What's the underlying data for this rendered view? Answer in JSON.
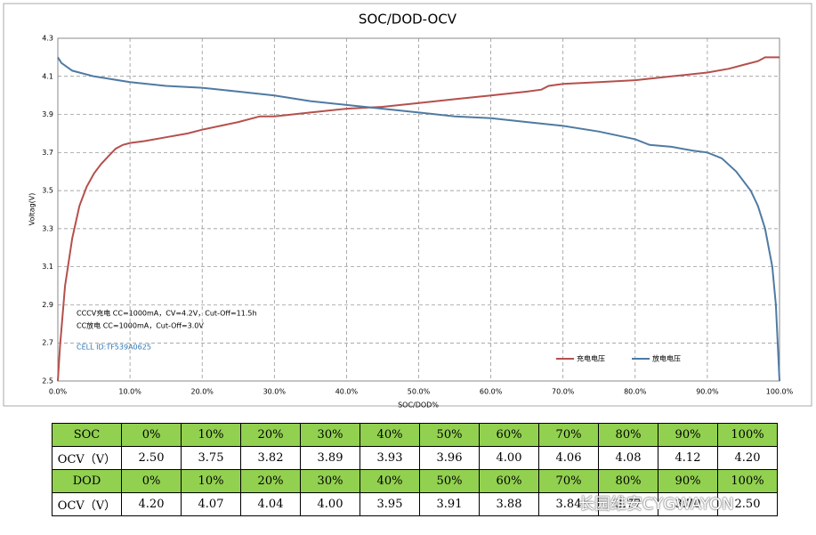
{
  "chart_data": {
    "type": "line",
    "title": "SOC/DOD-OCV",
    "x_label": "SOC/DOD%",
    "y_label": "Voltag(V)",
    "xlim": [
      0,
      100
    ],
    "xticks": [
      {
        "value": 0,
        "label": "0.0%"
      },
      {
        "value": 10,
        "label": "10.0%"
      },
      {
        "value": 20,
        "label": "20.0%"
      },
      {
        "value": 30,
        "label": "30.0%"
      },
      {
        "value": 40,
        "label": "40.0%"
      },
      {
        "value": 50,
        "label": "50.0%"
      },
      {
        "value": 60,
        "label": "60.0%"
      },
      {
        "value": 70,
        "label": "70.0%"
      },
      {
        "value": 80,
        "label": "80.0%"
      },
      {
        "value": 90,
        "label": "90.0%"
      },
      {
        "value": 100,
        "label": "100.0%"
      }
    ],
    "ylim": [
      2.5,
      4.3
    ],
    "yticks": [
      2.5,
      2.7,
      2.9,
      3.1,
      3.3,
      3.5,
      3.7,
      3.9,
      4.1,
      4.3
    ],
    "grid": true,
    "legend": "lower right",
    "series": [
      {
        "name": "充电电压",
        "color": "#b5504c",
        "x": [
          0,
          0.3,
          1,
          2,
          3,
          4,
          5,
          6,
          7,
          8,
          9,
          10,
          12,
          15,
          18,
          20,
          25,
          28,
          30,
          35,
          40,
          45,
          50,
          55,
          60,
          65,
          67,
          68,
          70,
          75,
          80,
          85,
          90,
          93,
          95,
          97,
          98,
          99,
          100
        ],
        "values": [
          2.5,
          2.68,
          3.0,
          3.25,
          3.42,
          3.52,
          3.59,
          3.64,
          3.68,
          3.72,
          3.74,
          3.75,
          3.76,
          3.78,
          3.8,
          3.82,
          3.86,
          3.89,
          3.89,
          3.91,
          3.93,
          3.94,
          3.96,
          3.98,
          4.0,
          4.02,
          4.03,
          4.05,
          4.06,
          4.07,
          4.08,
          4.1,
          4.12,
          4.14,
          4.16,
          4.18,
          4.2,
          4.2,
          4.2
        ]
      },
      {
        "name": "放电电压",
        "color": "#4f7aa3",
        "x": [
          0,
          0.5,
          2,
          5,
          10,
          15,
          20,
          25,
          30,
          35,
          40,
          45,
          50,
          55,
          60,
          65,
          70,
          75,
          80,
          82,
          85,
          88,
          90,
          92,
          94,
          96,
          97,
          98,
          99,
          99.5,
          100
        ],
        "values": [
          4.2,
          4.17,
          4.13,
          4.1,
          4.07,
          4.05,
          4.04,
          4.02,
          4.0,
          3.97,
          3.95,
          3.93,
          3.91,
          3.89,
          3.88,
          3.86,
          3.84,
          3.81,
          3.77,
          3.74,
          3.73,
          3.71,
          3.7,
          3.67,
          3.6,
          3.5,
          3.42,
          3.3,
          3.1,
          2.9,
          2.5
        ]
      }
    ],
    "annotations": [
      "CCCV充电  CC=1000mA，CV=4.2V，Cut-Off=11.5h",
      "CC放电    CC=1000mA，Cut-Off=3.0V",
      "CELL ID:TF539A0625"
    ]
  },
  "table": {
    "rows": [
      [
        "SOC",
        "0%",
        "10%",
        "20%",
        "30%",
        "40%",
        "50%",
        "60%",
        "70%",
        "80%",
        "90%",
        "100%"
      ],
      [
        "OCV（V）",
        "2.50",
        "3.75",
        "3.82",
        "3.89",
        "3.93",
        "3.96",
        "4.00",
        "4.06",
        "4.08",
        "4.12",
        "4.20"
      ],
      [
        "DOD",
        "0%",
        "10%",
        "20%",
        "30%",
        "40%",
        "50%",
        "60%",
        "70%",
        "80%",
        "90%",
        "100%"
      ],
      [
        "OCV（V）",
        "4.20",
        "4.07",
        "4.04",
        "4.00",
        "3.95",
        "3.91",
        "3.88",
        "3.84",
        "3.77",
        "3.70",
        "2.50"
      ]
    ]
  },
  "watermark": "长园维安CYGWAYON"
}
